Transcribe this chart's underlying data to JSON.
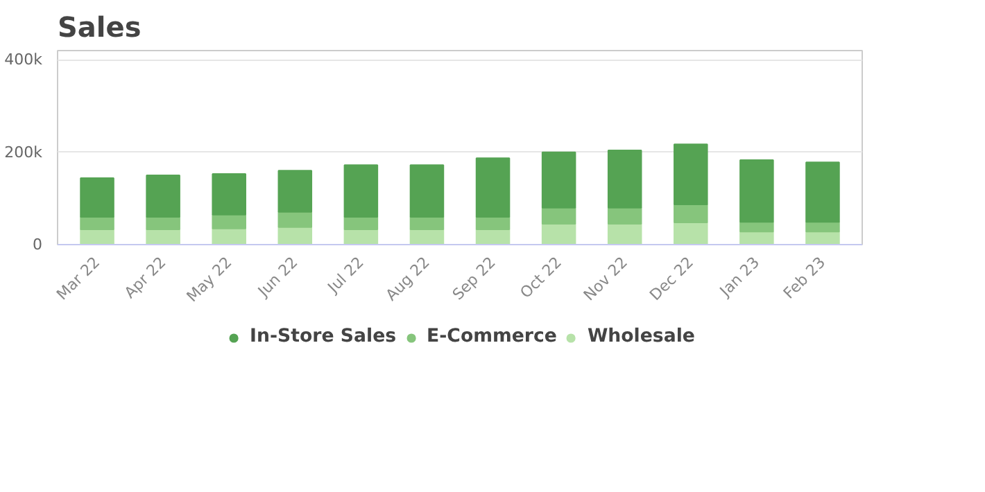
{
  "chart_data": {
    "type": "bar",
    "title": "Sales",
    "stacked": true,
    "categories": [
      "Mar 22",
      "Apr 22",
      "May 22",
      "Jun 22",
      "Jul 22",
      "Aug 22",
      "Sep 22",
      "Oct 22",
      "Nov 22",
      "Dec 22",
      "Jan 23",
      "Feb 23"
    ],
    "series": [
      {
        "name": "Wholesale",
        "color": "#b7e2a9",
        "values": [
          33000,
          33000,
          35000,
          38000,
          33000,
          33000,
          33000,
          45000,
          45000,
          48000,
          28000,
          28000
        ]
      },
      {
        "name": "E-Commerce",
        "color": "#86c57c",
        "values": [
          27000,
          27000,
          30000,
          33000,
          27000,
          27000,
          27000,
          35000,
          35000,
          39000,
          21000,
          21000
        ]
      },
      {
        "name": "In-Store Sales",
        "color": "#55a353",
        "values": [
          84000,
          90000,
          88000,
          89000,
          112000,
          112000,
          127000,
          120000,
          124000,
          130000,
          134000,
          129000
        ]
      }
    ],
    "ylim": [
      0,
      420000
    ],
    "yticks": [
      {
        "value": 0,
        "label": "0"
      },
      {
        "value": 200000,
        "label": "200k"
      },
      {
        "value": 400000,
        "label": "400k"
      }
    ],
    "grid": "y",
    "legend": "bottom"
  }
}
